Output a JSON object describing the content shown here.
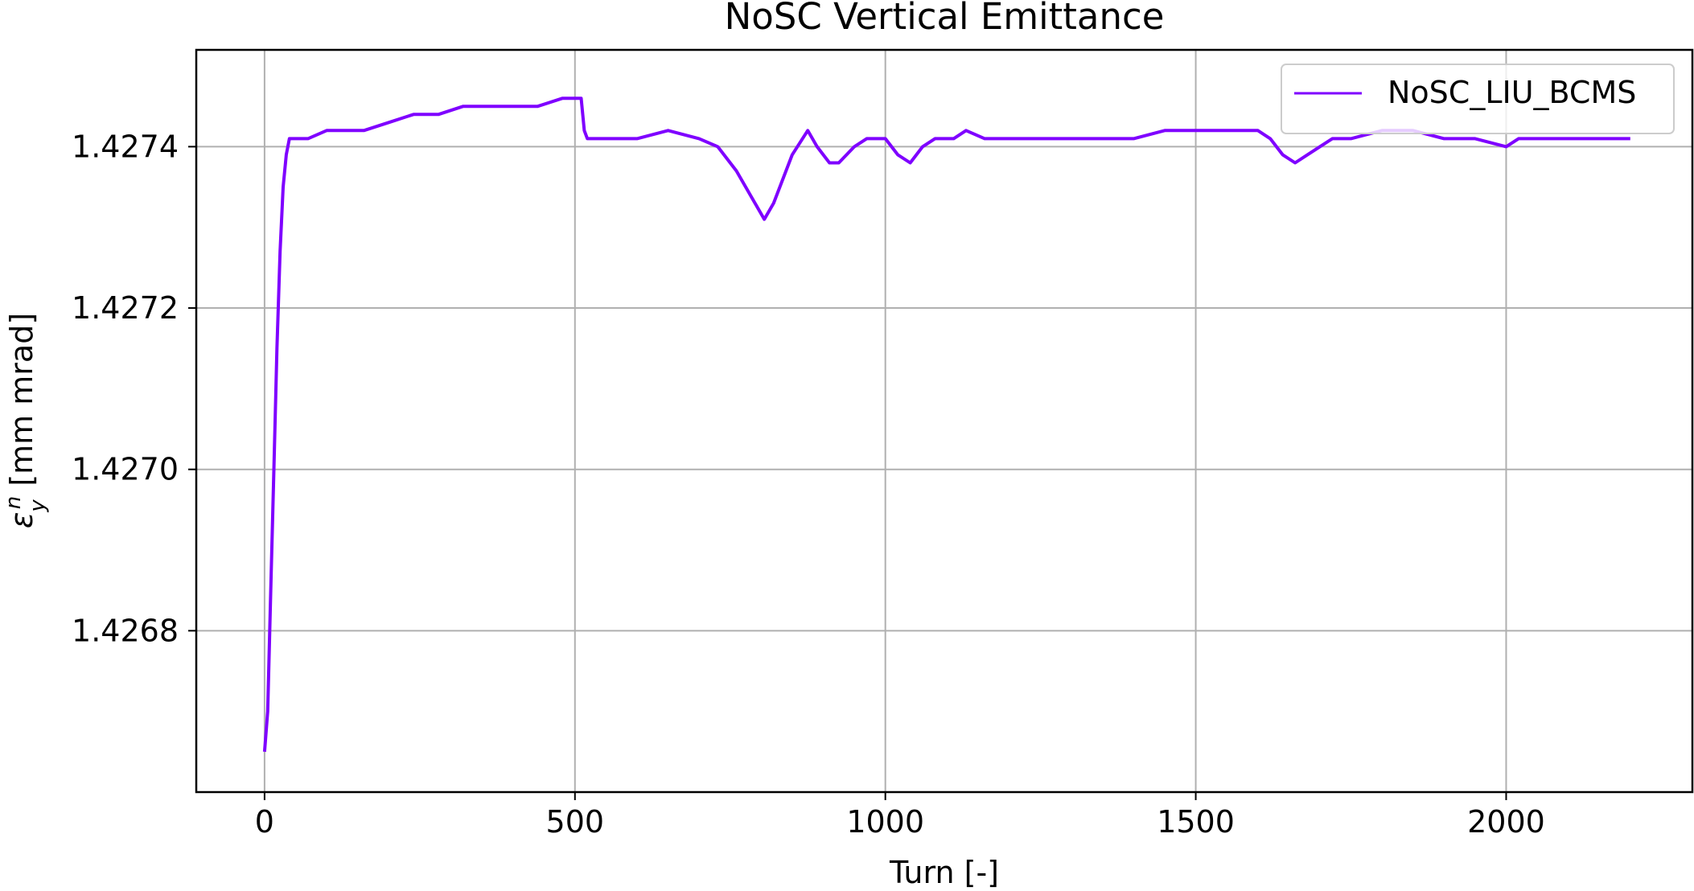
{
  "chart_data": {
    "type": "line",
    "title": "NoSC Vertical Emittance",
    "xlabel": "Turn [-]",
    "ylabel_symbol": "ε",
    "ylabel_sub": "y",
    "ylabel_sup": "n",
    "ylabel_unit": " [mm mrad]",
    "xlim": [
      -110,
      2300
    ],
    "ylim": [
      1.4266,
      1.42752
    ],
    "xticks": [
      0,
      500,
      1000,
      1500,
      2000
    ],
    "xtick_labels": [
      "0",
      "500",
      "1000",
      "1500",
      "2000"
    ],
    "yticks": [
      1.4268,
      1.427,
      1.4272,
      1.4274
    ],
    "ytick_labels": [
      "1.4268",
      "1.4270",
      "1.4272",
      "1.4274"
    ],
    "grid": true,
    "legend_position": "top-right",
    "series": [
      {
        "name": "NoSC_LIU_BCMS",
        "color": "#7f00ff",
        "x": [
          0,
          5,
          10,
          15,
          20,
          25,
          30,
          35,
          40,
          50,
          70,
          100,
          130,
          160,
          200,
          240,
          280,
          320,
          360,
          400,
          440,
          480,
          500,
          510,
          515,
          520,
          550,
          600,
          650,
          700,
          730,
          760,
          790,
          805,
          820,
          850,
          875,
          890,
          910,
          925,
          950,
          970,
          1000,
          1020,
          1040,
          1060,
          1080,
          1110,
          1130,
          1160,
          1200,
          1250,
          1300,
          1350,
          1400,
          1450,
          1500,
          1550,
          1600,
          1620,
          1640,
          1660,
          1680,
          1700,
          1720,
          1750,
          1800,
          1850,
          1900,
          1950,
          2000,
          2020,
          2050,
          2100,
          2150,
          2200
        ],
        "y": [
          1.42665,
          1.4267,
          1.42685,
          1.427,
          1.42715,
          1.42727,
          1.42735,
          1.42739,
          1.42741,
          1.42741,
          1.42741,
          1.42742,
          1.42742,
          1.42742,
          1.42743,
          1.42744,
          1.42744,
          1.42745,
          1.42745,
          1.42745,
          1.42745,
          1.42746,
          1.42746,
          1.42746,
          1.42742,
          1.42741,
          1.42741,
          1.42741,
          1.42742,
          1.42741,
          1.4274,
          1.42737,
          1.42733,
          1.42731,
          1.42733,
          1.42739,
          1.42742,
          1.4274,
          1.42738,
          1.42738,
          1.4274,
          1.42741,
          1.42741,
          1.42739,
          1.42738,
          1.4274,
          1.42741,
          1.42741,
          1.42742,
          1.42741,
          1.42741,
          1.42741,
          1.42741,
          1.42741,
          1.42741,
          1.42742,
          1.42742,
          1.42742,
          1.42742,
          1.42741,
          1.42739,
          1.42738,
          1.42739,
          1.4274,
          1.42741,
          1.42741,
          1.42742,
          1.42742,
          1.42741,
          1.42741,
          1.4274,
          1.42741,
          1.42741,
          1.42741,
          1.42741,
          1.42741
        ]
      }
    ]
  }
}
